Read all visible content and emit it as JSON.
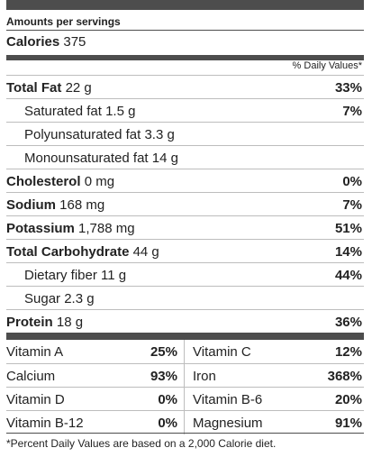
{
  "header": {
    "amounts": "Amounts per servings",
    "calories_label": "Calories",
    "calories_value": "375"
  },
  "dv_header": "% Daily Values*",
  "nutrients": [
    {
      "name": "Total Fat",
      "amount": "22 g",
      "pct": "33%",
      "bold": true,
      "indent": false
    },
    {
      "name": "Saturated fat",
      "amount": "1.5 g",
      "pct": "7%",
      "bold": false,
      "indent": true
    },
    {
      "name": "Polyunsaturated fat",
      "amount": "3.3 g",
      "pct": "",
      "bold": false,
      "indent": true
    },
    {
      "name": "Monounsaturated fat",
      "amount": "14 g",
      "pct": "",
      "bold": false,
      "indent": true
    },
    {
      "name": "Cholesterol",
      "amount": "0 mg",
      "pct": "0%",
      "bold": true,
      "indent": false
    },
    {
      "name": "Sodium",
      "amount": "168 mg",
      "pct": "7%",
      "bold": true,
      "indent": false
    },
    {
      "name": "Potassium",
      "amount": "1,788 mg",
      "pct": "51%",
      "bold": true,
      "indent": false
    },
    {
      "name": "Total Carbohydrate",
      "amount": "44 g",
      "pct": "14%",
      "bold": true,
      "indent": false
    },
    {
      "name": "Dietary fiber",
      "amount": "11 g",
      "pct": "44%",
      "bold": false,
      "indent": true
    },
    {
      "name": "Sugar",
      "amount": "2.3 g",
      "pct": "",
      "bold": false,
      "indent": true
    },
    {
      "name": "Protein",
      "amount": "18 g",
      "pct": "36%",
      "bold": true,
      "indent": false
    }
  ],
  "vitamins": [
    {
      "n1": "Vitamin A",
      "p1": "25%",
      "n2": "Vitamin C",
      "p2": "12%"
    },
    {
      "n1": "Calcium",
      "p1": "93%",
      "n2": "Iron",
      "p2": "368%"
    },
    {
      "n1": "Vitamin D",
      "p1": "0%",
      "n2": "Vitamin B-6",
      "p2": "20%"
    },
    {
      "n1": "Vitamin B-12",
      "p1": "0%",
      "n2": "Magnesium",
      "p2": "91%"
    }
  ],
  "footnote": "*Percent Daily Values are based on a 2,000 Calorie diet."
}
